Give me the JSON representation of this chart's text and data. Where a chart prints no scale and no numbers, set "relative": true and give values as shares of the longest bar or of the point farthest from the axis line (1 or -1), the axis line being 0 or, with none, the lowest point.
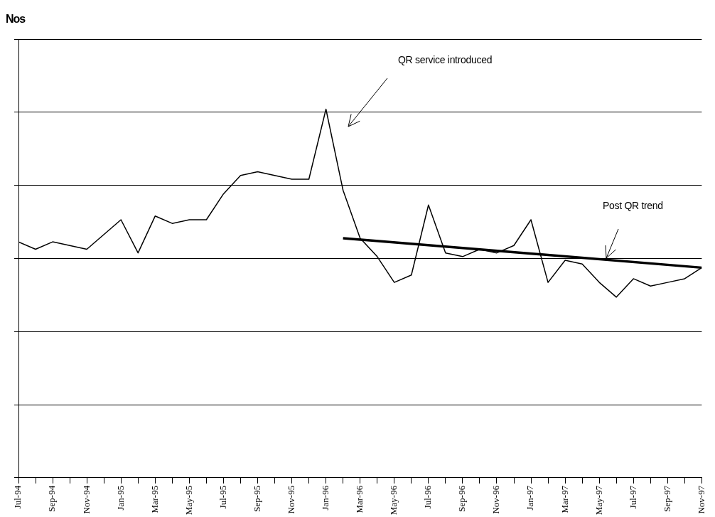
{
  "chart_data": {
    "type": "line",
    "relative": true,
    "grid": "y",
    "legend": false,
    "marker": "none",
    "xlim": [
      "1994-07",
      "1997-11"
    ],
    "xticks": [
      {
        "value": "1994-07",
        "label": "Jul-94"
      },
      {
        "value": "1994-08",
        "label": null
      },
      {
        "value": "1994-09",
        "label": "Sep-94"
      },
      {
        "value": "1994-10",
        "label": null
      },
      {
        "value": "1994-11",
        "label": "Nov-94"
      },
      {
        "value": "1994-12",
        "label": null
      },
      {
        "value": "1995-01",
        "label": "Jan-95"
      },
      {
        "value": "1995-02",
        "label": null
      },
      {
        "value": "1995-03",
        "label": "Mar-95"
      },
      {
        "value": "1995-04",
        "label": null
      },
      {
        "value": "1995-05",
        "label": "May-95"
      },
      {
        "value": "1995-06",
        "label": null
      },
      {
        "value": "1995-07",
        "label": "Jul-95"
      },
      {
        "value": "1995-08",
        "label": null
      },
      {
        "value": "1995-09",
        "label": "Sep-95"
      },
      {
        "value": "1995-10",
        "label": null
      },
      {
        "value": "1995-11",
        "label": "Nov-95"
      },
      {
        "value": "1995-12",
        "label": null
      },
      {
        "value": "1996-01",
        "label": "Jan-96"
      },
      {
        "value": "1996-02",
        "label": null
      },
      {
        "value": "1996-03",
        "label": "Mar-96"
      },
      {
        "value": "1996-04",
        "label": null
      },
      {
        "value": "1996-05",
        "label": "May-96"
      },
      {
        "value": "1996-06",
        "label": null
      },
      {
        "value": "1996-07",
        "label": "Jul-96"
      },
      {
        "value": "1996-08",
        "label": null
      },
      {
        "value": "1996-09",
        "label": "Sep-96"
      },
      {
        "value": "1996-10",
        "label": null
      },
      {
        "value": "1996-11",
        "label": "Nov-96"
      },
      {
        "value": "1996-12",
        "label": null
      },
      {
        "value": "1997-01",
        "label": "Jan-97"
      },
      {
        "value": "1997-02",
        "label": null
      },
      {
        "value": "1997-03",
        "label": "Mar-97"
      },
      {
        "value": "1997-04",
        "label": null
      },
      {
        "value": "1997-05",
        "label": "May-97"
      },
      {
        "value": "1997-06",
        "label": null
      },
      {
        "value": "1997-07",
        "label": "Jul-97"
      },
      {
        "value": "1997-08",
        "label": null
      },
      {
        "value": "1997-09",
        "label": "Sep-97"
      },
      {
        "value": "1997-10",
        "label": null
      },
      {
        "value": "1997-11",
        "label": "Nov-97"
      }
    ],
    "series": [
      {
        "color": "#000000",
        "x": [
          "1994-07",
          "1994-08",
          "1994-09",
          "1994-10",
          "1994-11",
          "1994-12",
          "1995-01",
          "1995-02",
          "1995-03",
          "1995-04",
          "1995-05",
          "1995-06",
          "1995-07",
          "1995-08",
          "1995-09",
          "1995-10",
          "1995-11",
          "1995-12",
          "1996-01",
          "1996-02",
          "1996-03",
          "1996-04",
          "1996-05",
          "1996-06",
          "1996-07",
          "1996-08",
          "1996-09",
          "1996-10",
          "1996-11",
          "1996-12",
          "1997-01",
          "1997-02",
          "1997-03",
          "1997-04",
          "1997-05",
          "1997-06",
          "1997-07",
          "1997-08",
          "1997-09",
          "1997-10",
          "1997-11"
        ],
        "values": [
          0.64,
          0.62,
          0.64,
          0.63,
          0.62,
          0.66,
          0.7,
          0.61,
          0.71,
          0.69,
          0.7,
          0.7,
          0.77,
          0.82,
          0.83,
          0.82,
          0.81,
          0.81,
          1,
          0.78,
          0.65,
          0.6,
          0.53,
          0.55,
          0.74,
          0.61,
          0.6,
          0.62,
          0.61,
          0.63,
          0.7,
          0.53,
          0.59,
          0.58,
          0.53,
          0.49,
          0.54,
          0.52,
          0.53,
          0.54,
          0.57
        ]
      },
      {
        "type": "line",
        "color": "#000000",
        "x": [
          "1996-02",
          "1997-11"
        ],
        "values": [
          0.65,
          0.57
        ]
      }
    ],
    "annotations": [
      "Nos",
      "QR service introduced",
      "Post QR trend"
    ]
  }
}
